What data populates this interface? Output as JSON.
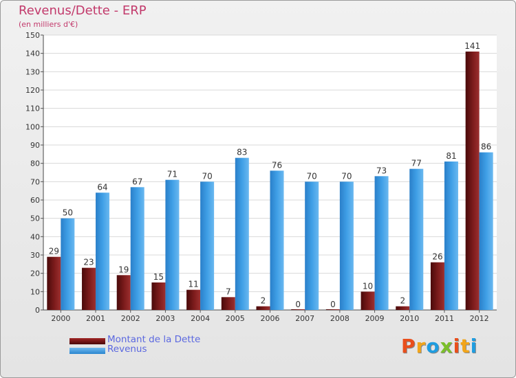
{
  "chart_data": {
    "type": "bar",
    "title": "Revenus/Dette - ERP",
    "subtitle": "(en milliers d'€)",
    "categories": [
      "2000",
      "2001",
      "2002",
      "2003",
      "2004",
      "2005",
      "2006",
      "2007",
      "2008",
      "2009",
      "2010",
      "2011",
      "2012"
    ],
    "series": [
      {
        "name": "Montant de la Dette",
        "values": [
          29,
          23,
          19,
          15,
          11,
          7,
          2,
          0,
          0,
          10,
          2,
          26,
          141
        ],
        "color": "#7a1a1a"
      },
      {
        "name": "Revenus",
        "values": [
          50,
          64,
          67,
          71,
          70,
          83,
          76,
          70,
          70,
          73,
          77,
          81,
          86
        ],
        "color": "#3d9ee6"
      }
    ],
    "ylim": [
      0,
      150
    ],
    "yticks": [
      0,
      10,
      20,
      30,
      40,
      50,
      60,
      70,
      80,
      90,
      100,
      110,
      120,
      130,
      140,
      150
    ],
    "grid": true,
    "legend": "bottom-left",
    "data_labels": true
  },
  "logo": {
    "letters": [
      "P",
      "r",
      "o",
      "x",
      "i",
      "t",
      "i"
    ],
    "colors": [
      "#e94e1b",
      "#f2a51a",
      "#1f9de0",
      "#7bbf2a",
      "#e94e1b",
      "#f2a51a",
      "#1f9de0"
    ]
  }
}
